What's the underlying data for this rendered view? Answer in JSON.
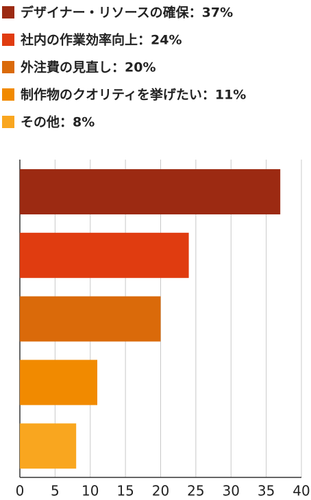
{
  "chart_data": {
    "type": "bar",
    "orientation": "horizontal",
    "categories": [
      "デザイナー・リソースの確保：37%",
      "社内の作業効率向上：24%",
      "外注費の見直し：20%",
      "制作物のクオリティを挙げたい：11%",
      "その他：8%"
    ],
    "values": [
      37,
      24,
      20,
      11,
      8
    ],
    "colors": [
      "#9c2a12",
      "#e03c10",
      "#da6a0a",
      "#f18a00",
      "#f9a61f"
    ],
    "xlim": [
      0,
      40
    ],
    "xticks": [
      0,
      5,
      10,
      15,
      20,
      25,
      30,
      35,
      40
    ],
    "grid": true
  }
}
